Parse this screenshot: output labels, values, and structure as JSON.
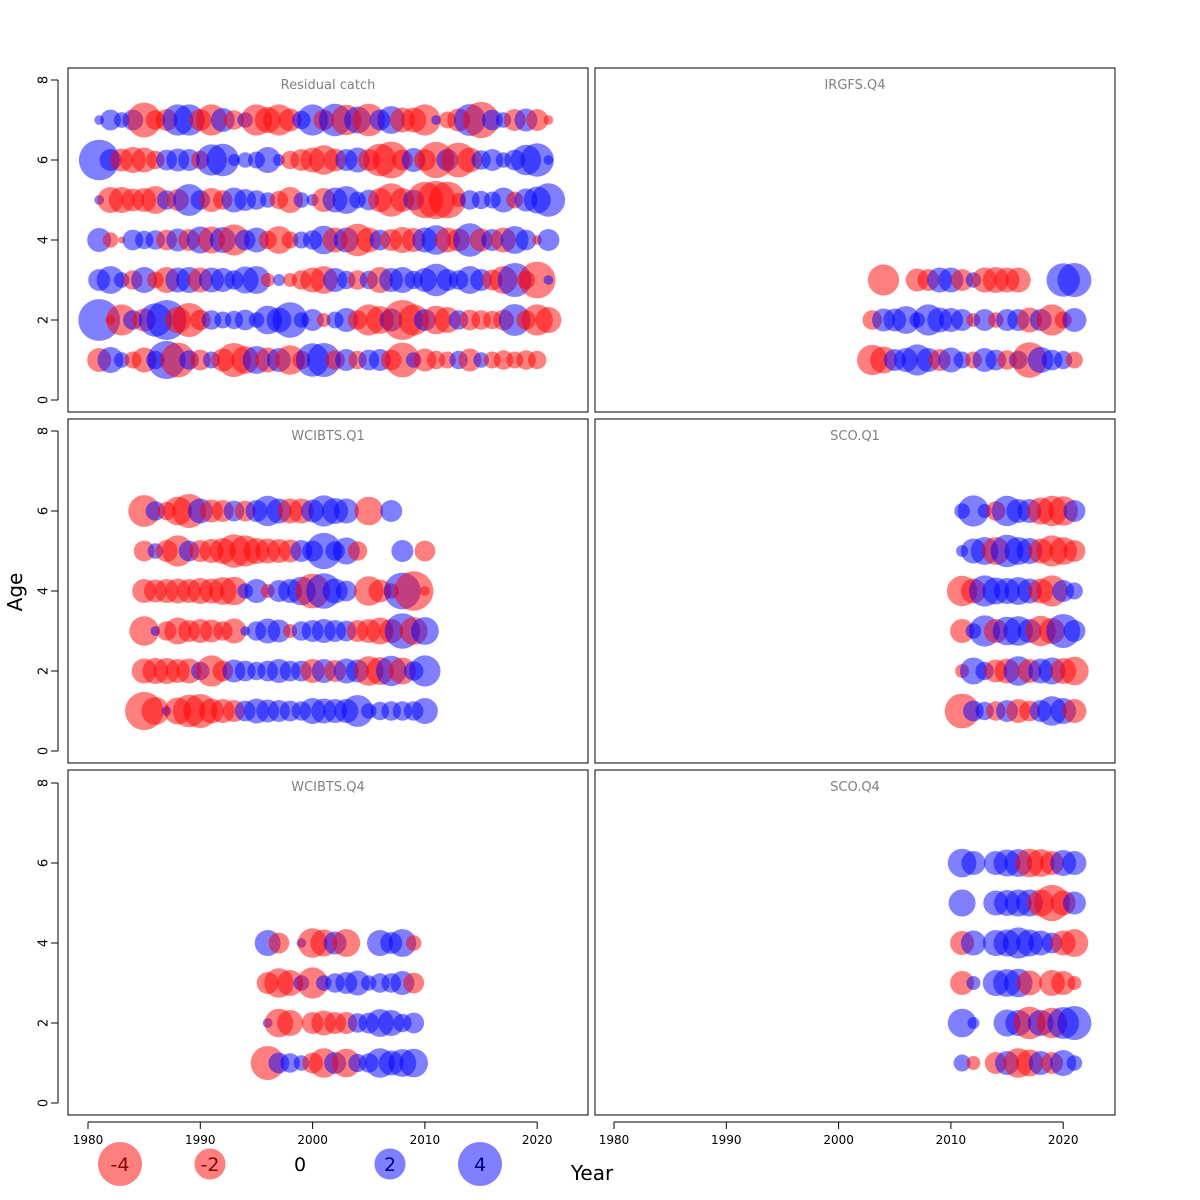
{
  "colors": {
    "negative": "#ff0000",
    "positive": "#0000ff",
    "panel_title": "#808080",
    "axis": "#000000"
  },
  "chart_data": {
    "type": "scatter",
    "subtype": "bubble-residuals",
    "xlabel": "Year",
    "ylabel": "Age",
    "xlim": [
      1980,
      2022
    ],
    "ylim": [
      0,
      8
    ],
    "xticks": [
      1980,
      1990,
      2000,
      2010,
      2020
    ],
    "yticks": [
      0,
      2,
      4,
      6,
      8
    ],
    "grid": false,
    "legend": {
      "placement": "bottom-left",
      "entries": [
        {
          "label": "-4",
          "value": -4
        },
        {
          "label": "-2",
          "value": -2
        },
        {
          "label": "0",
          "value": 0
        },
        {
          "label": "2",
          "value": 2
        },
        {
          "label": "4",
          "value": 4
        }
      ]
    },
    "panels": [
      {
        "title": "Residual catch",
        "show_x_axis": true,
        "ages": [
          1,
          2,
          3,
          4,
          5,
          6,
          7
        ],
        "years": [
          1981,
          1982,
          1983,
          1984,
          1985,
          1986,
          1987,
          1988,
          1989,
          1990,
          1991,
          1992,
          1993,
          1994,
          1995,
          1996,
          1997,
          1998,
          1999,
          2000,
          2001,
          2002,
          2003,
          2004,
          2005,
          2006,
          2007,
          2008,
          2009,
          2010,
          2011,
          2012,
          2013,
          2014,
          2015,
          2016,
          2017,
          2018,
          2019,
          2020,
          2021
        ],
        "residuals": [
          [
            -1.2,
            1.4,
            0.5,
            -0.6,
            -1.3,
            0.7,
            3.0,
            -2.5,
            0.8,
            -0.9,
            0.6,
            -1.1,
            -2.4,
            -1.6,
            1.6,
            -1.3,
            1.2,
            -1.8,
            -0.7,
            2.3,
            2.4,
            -0.8,
            1.0,
            -0.7,
            0.9,
            1.0,
            -0.9,
            -2.5,
            0.5,
            -1.1,
            -0.7,
            -0.6,
            0.7,
            -1.1,
            0.5,
            -0.6,
            -0.8,
            -0.6,
            -0.8,
            -0.7,
            0
          ],
          [
            3.6,
            -0.2,
            -2.0,
            0.8,
            -1.1,
            2.3,
            3.3,
            -1.4,
            -2.4,
            -0.9,
            0.8,
            0.6,
            0.7,
            0.9,
            0.5,
            1.7,
            1.3,
            2.6,
            0.5,
            1.0,
            -0.4,
            0.6,
            1.2,
            -0.8,
            -2.0,
            -1.6,
            1.1,
            -3.3,
            -2.0,
            1.0,
            -1.7,
            -1.4,
            0.8,
            -0.9,
            -0.8,
            -0.7,
            -0.9,
            2.1,
            -0.8,
            -2.0,
            -1.4
          ],
          [
            1.0,
            1.6,
            0.5,
            -0.8,
            1.4,
            -0.6,
            -1.4,
            1.3,
            1.4,
            -1.3,
            1.3,
            1.2,
            0.8,
            1.5,
            1.6,
            -0.4,
            0.3,
            -0.4,
            -0.8,
            -1.3,
            -1.6,
            1.2,
            0.7,
            -0.8,
            0.7,
            -1.4,
            1.2,
            1.4,
            0.7,
            1.2,
            2.2,
            1.0,
            0.8,
            1.6,
            1.0,
            -0.9,
            -1.6,
            2.4,
            -0.7,
            -2.8,
            0.2
          ],
          [
            1.2,
            -0.5,
            -0.1,
            0.9,
            0.7,
            0.8,
            -0.9,
            1.1,
            -1.0,
            1.5,
            -1.5,
            1.4,
            -2.0,
            0.9,
            1.3,
            -0.7,
            -1.6,
            -0.6,
            0.6,
            0.8,
            1.7,
            -1.3,
            1.3,
            -2.2,
            -1.3,
            0.9,
            -1.0,
            -1.4,
            -1.2,
            1.3,
            1.8,
            -1.3,
            -1.1,
            2.3,
            -1.1,
            1.0,
            -1.3,
            1.6,
            0.9,
            -0.2,
            1.0
          ],
          [
            0.2,
            -1.4,
            -1.4,
            -1.1,
            -1.2,
            -1.6,
            0.8,
            -1.0,
            2.1,
            0.8,
            -1.2,
            -0.8,
            1.3,
            1.0,
            0.8,
            0.5,
            -0.7,
            -1.4,
            0.5,
            0.3,
            -1.2,
            1.3,
            1.6,
            0.6,
            0.9,
            -1.2,
            -2.3,
            -1.2,
            0.9,
            -2.7,
            -3.0,
            -2.8,
            -0.4,
            0.8,
            0.7,
            0.6,
            1.3,
            -0.6,
            1.1,
            1.5,
            2.3
          ],
          [
            3.4,
            1.0,
            -1.1,
            -1.4,
            -1.3,
            -0.7,
            0.9,
            1.1,
            1.0,
            -0.7,
            2.0,
            2.2,
            0.3,
            0.5,
            0.6,
            1.4,
            0.3,
            -0.7,
            -1.0,
            -1.3,
            -1.8,
            -1.1,
            1.0,
            1.3,
            -1.0,
            -2.2,
            -2.8,
            -0.9,
            1.2,
            -1.0,
            -2.7,
            1.0,
            -2.5,
            -1.3,
            0.8,
            1.0,
            0.5,
            0.9,
            1.9,
            2.3,
            0.2
          ],
          [
            0.2,
            0.9,
            0.5,
            0.9,
            -2.5,
            -0.8,
            -1.0,
            2.0,
            2.0,
            -1.0,
            -2.0,
            1.2,
            -0.8,
            0.5,
            -2.0,
            -1.4,
            -2.0,
            -1.1,
            0.7,
            2.0,
            -0.9,
            2.2,
            -1.9,
            1.5,
            -2.2,
            0.9,
            1.6,
            -1.3,
            -1.3,
            -2.0,
            0.2,
            -0.6,
            -1.1,
            2.1,
            -2.7,
            0.9,
            0.5,
            -1.0,
            1.1,
            -1.0,
            -0.2
          ]
        ]
      },
      {
        "title": "IRGFS.Q4",
        "show_x_axis": true,
        "ages": [
          1,
          2,
          3
        ],
        "years": [
          2003,
          2004,
          2005,
          2006,
          2007,
          2008,
          2009,
          2010,
          2011,
          2012,
          2013,
          2014,
          2015,
          2016,
          2017,
          2018,
          2019,
          2020,
          2021
        ],
        "residuals": [
          [
            -1.9,
            -1.5,
            1.0,
            1.2,
            2.0,
            1.2,
            -1.0,
            1.3,
            0.6,
            -0.6,
            1.2,
            0.9,
            -0.8,
            0.7,
            -2.6,
            1.4,
            0.9,
            0.7,
            -0.6
          ],
          [
            -0.8,
            1.1,
            1.1,
            1.6,
            0.5,
            2.0,
            1.3,
            1.2,
            1.0,
            -0.4,
            1.0,
            -0.5,
            1.0,
            1.0,
            -1.3,
            1.0,
            -2.0,
            -0.6,
            1.2
          ],
          [
            0,
            -2.0,
            0,
            0,
            -1.1,
            -1.0,
            1.3,
            1.3,
            -1.0,
            0.5,
            -1.3,
            -1.4,
            -1.3,
            -1.3,
            0,
            0,
            0,
            2.3,
            2.4
          ]
        ]
      },
      {
        "title": "WCIBTS.Q1",
        "show_x_axis": false,
        "ages": [
          1,
          2,
          3,
          4,
          5,
          6
        ],
        "years": [
          1985,
          1986,
          1987,
          1988,
          1989,
          1990,
          1991,
          1992,
          1993,
          1994,
          1995,
          1996,
          1997,
          1998,
          1999,
          2000,
          2001,
          2002,
          2003,
          2004,
          2005,
          2006,
          2007,
          2008,
          2009,
          2010
        ],
        "residuals": [
          [
            -3.0,
            -1.6,
            0.2,
            -1.5,
            -2.2,
            -2.4,
            -1.3,
            -1.2,
            -1.0,
            0.9,
            1.3,
            1.1,
            1.0,
            0.9,
            0.8,
            1.4,
            1.3,
            1.2,
            1.2,
            2.1,
            0.5,
            0.7,
            0.8,
            0.8,
            0.8,
            1.4
          ],
          [
            -1.3,
            -1.4,
            -1.4,
            -1.2,
            -1.3,
            0.7,
            -2.0,
            -0.9,
            1.1,
            0.9,
            0.7,
            0.9,
            1.2,
            0.9,
            0.9,
            -1.2,
            1.2,
            -1.0,
            1.3,
            1.1,
            -1.8,
            -1.6,
            1.9,
            -1.5,
            0.8,
            2.0
          ],
          [
            -1.8,
            0.2,
            -0.8,
            -1.5,
            -1.0,
            -1.2,
            -1.1,
            -0.8,
            -1.3,
            0.2,
            0.8,
            1.3,
            1.1,
            -0.4,
            0.8,
            1.0,
            1.2,
            1.0,
            0.9,
            -1.0,
            -1.2,
            -1.5,
            -1.2,
            2.6,
            -1.6,
            1.6
          ],
          [
            -1.2,
            -1.1,
            -1.2,
            -1.3,
            -1.2,
            -1.4,
            -1.3,
            -1.6,
            -1.7,
            0.5,
            1.2,
            -0.4,
            1.0,
            1.2,
            1.7,
            -2.5,
            2.6,
            1.3,
            0.9,
            0,
            -1.8,
            -1.1,
            -0.5,
            2.8,
            -3.2,
            -0.2
          ],
          [
            -0.9,
            0.5,
            -1.0,
            -2.0,
            0.9,
            -1.0,
            -1.2,
            -1.4,
            -2.3,
            -2.0,
            -1.4,
            -1.3,
            -1.2,
            -1.1,
            1.0,
            0.9,
            2.7,
            0.8,
            1.5,
            -0.8,
            0,
            0,
            0,
            1.0,
            0,
            -0.9
          ],
          [
            -2.1,
            0.8,
            -0.7,
            -1.7,
            -2.4,
            1.3,
            -1.1,
            -1.0,
            0.9,
            -0.9,
            1.0,
            1.9,
            1.3,
            -1.3,
            -1.3,
            1.1,
            2.0,
            1.4,
            1.3,
            0,
            -1.7,
            0,
            1.0,
            0,
            0,
            0
          ]
        ]
      },
      {
        "title": "SCO.Q1",
        "show_x_axis": false,
        "ages": [
          1,
          2,
          3,
          4,
          5,
          6
        ],
        "years": [
          2011,
          2012,
          2013,
          2014,
          2015,
          2016,
          2017,
          2018,
          2019,
          2020,
          2021
        ],
        "residuals": [
          [
            -2.5,
            0.9,
            0.7,
            -0.8,
            1.0,
            -1.2,
            -0.9,
            1.0,
            1.8,
            1.4,
            -1.2
          ],
          [
            -0.4,
            1.5,
            0.7,
            -1.1,
            -1.3,
            1.8,
            -1.2,
            1.3,
            1.5,
            -1.4,
            -1.7
          ],
          [
            -1.2,
            0.5,
            2.0,
            -1.2,
            1.7,
            1.8,
            1.2,
            -1.9,
            -1.4,
            2.4,
            1.0
          ],
          [
            -1.9,
            -1.3,
            2.0,
            1.5,
            1.4,
            1.6,
            1.3,
            -1.3,
            -2.0,
            1.0,
            0.6
          ],
          [
            0.3,
            1.3,
            1.6,
            -1.6,
            2.2,
            1.6,
            1.4,
            -1.3,
            -2.0,
            -1.6,
            -1.0
          ],
          [
            0.5,
            2.0,
            0.4,
            -0.8,
            1.9,
            1.2,
            1.2,
            -1.5,
            -1.9,
            -1.8,
            1.0
          ]
        ]
      },
      {
        "title": "WCIBTS.Q4",
        "show_x_axis": false,
        "ages": [
          1,
          2,
          3,
          4
        ],
        "years": [
          1996,
          1997,
          1998,
          1999,
          2000,
          2001,
          2002,
          2003,
          2004,
          2005,
          2006,
          2007,
          2008,
          2009
        ],
        "residuals": [
          [
            -2.4,
            0.9,
            0.8,
            0.5,
            -0.9,
            -1.8,
            1.0,
            -1.7,
            0.7,
            0.8,
            1.8,
            1.3,
            1.6,
            1.7
          ],
          [
            0.2,
            -1.7,
            -1.4,
            0,
            -1.0,
            -1.3,
            -1.0,
            -1.0,
            0.8,
            0.9,
            1.6,
            1.4,
            0.7,
            0.9
          ],
          [
            -1.0,
            -1.8,
            -1.4,
            0.5,
            -2.0,
            0.5,
            0.8,
            1.0,
            1.3,
            0.5,
            0.8,
            0.8,
            1.2,
            -0.9
          ],
          [
            1.4,
            -0.9,
            0,
            0.2,
            -1.8,
            -1.5,
            1.1,
            -1.6,
            0,
            0,
            1.4,
            1.0,
            1.6,
            -0.5
          ]
        ]
      },
      {
        "title": "SCO.Q4",
        "show_x_axis": false,
        "ages": [
          1,
          2,
          3,
          4,
          5,
          6
        ],
        "years": [
          2011,
          2012,
          2013,
          2014,
          2015,
          2016,
          2017,
          2018,
          2019,
          2020,
          2021
        ],
        "residuals": [
          [
            0.6,
            -0.4,
            0,
            -1.0,
            1.2,
            -1.8,
            -1.5,
            1.2,
            -1.0,
            1.4,
            0.5
          ],
          [
            1.7,
            0.3,
            0,
            0,
            1.5,
            1.4,
            -2.2,
            1.4,
            -1.9,
            2.1,
            2.4
          ],
          [
            -1.2,
            0.4,
            0,
            1.4,
            1.6,
            1.7,
            -1.3,
            0,
            -1.4,
            -1.2,
            -0.4
          ],
          [
            -1.2,
            1.3,
            0,
            1.4,
            1.5,
            2.0,
            1.5,
            1.3,
            0.9,
            -1.3,
            -1.6
          ],
          [
            1.5,
            0,
            0,
            1.3,
            1.4,
            1.5,
            1.5,
            -1.5,
            -2.7,
            -1.3,
            1.1
          ],
          [
            1.7,
            1.2,
            0,
            1.2,
            1.5,
            1.6,
            -1.7,
            -1.6,
            -1.2,
            1.4,
            1.2
          ]
        ]
      }
    ]
  }
}
